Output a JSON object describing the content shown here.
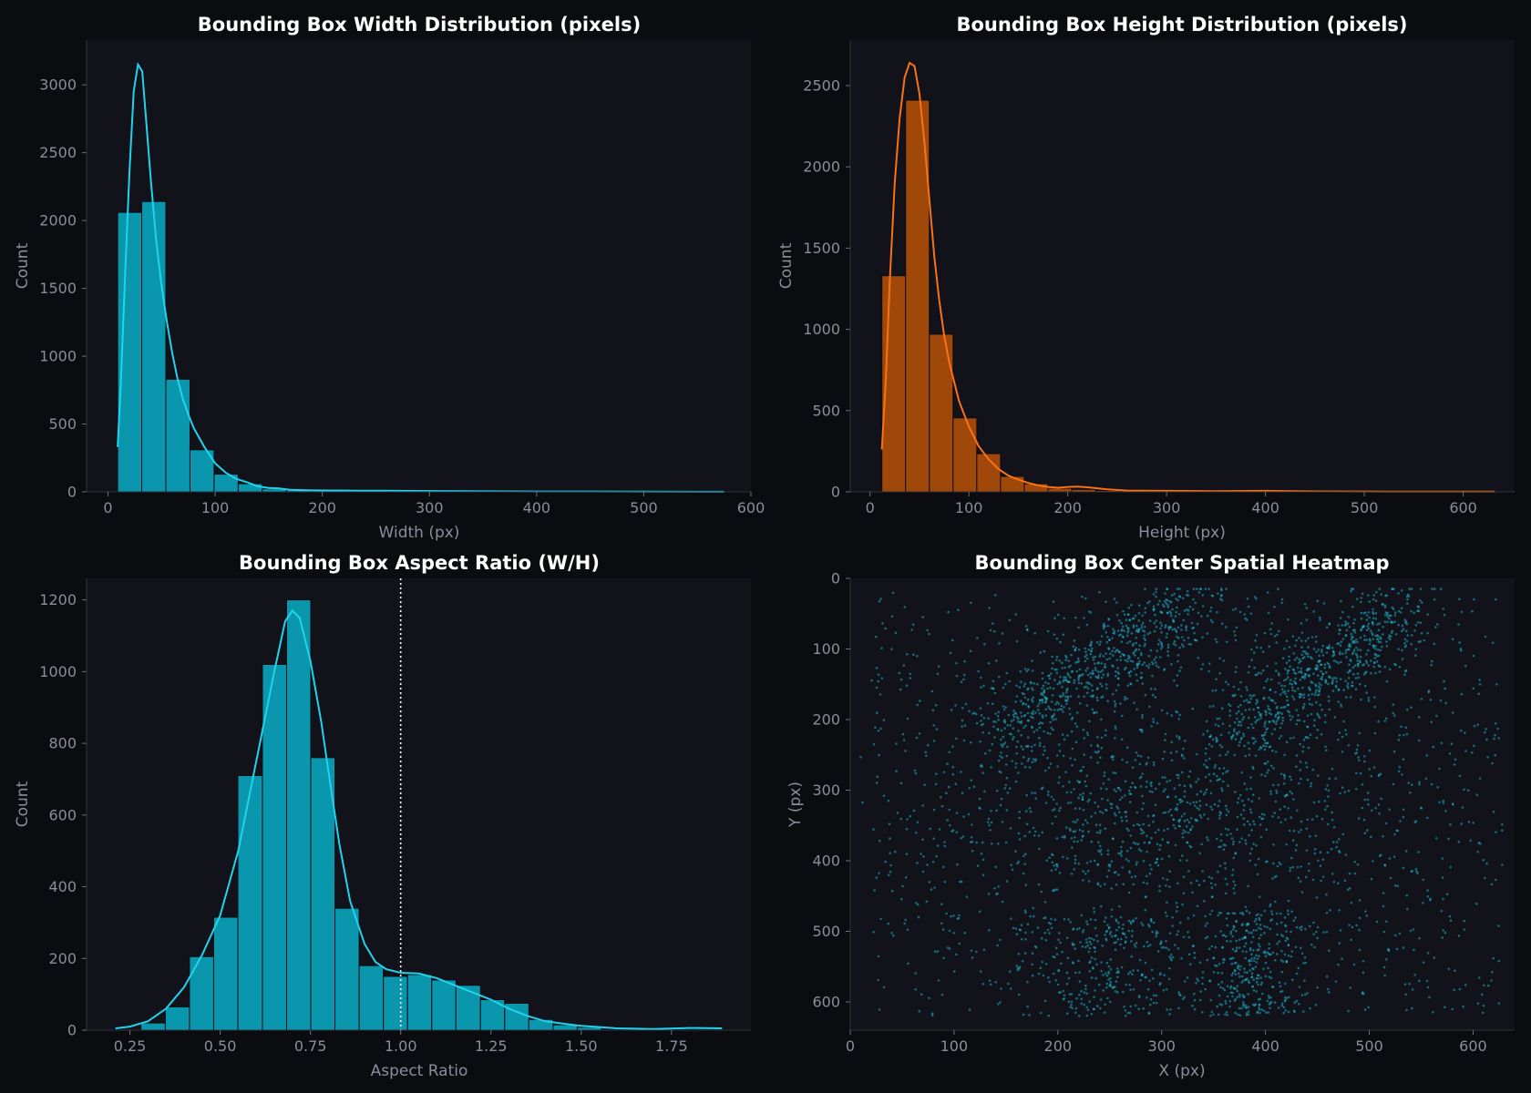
{
  "chart_data": [
    {
      "id": "width",
      "type": "bar",
      "title": "Bounding Box Width Distribution (pixels)",
      "xlabel": "Width (px)",
      "ylabel": "Count",
      "xlim": [
        -20,
        600
      ],
      "ylim": [
        0,
        3330
      ],
      "xticks": [
        0,
        100,
        200,
        300,
        400,
        500,
        600
      ],
      "yticks": [
        0,
        500,
        1000,
        1500,
        2000,
        2500,
        3000
      ],
      "color": "#0a97ad",
      "line_color": "#22d3ee",
      "bins": [
        {
          "x0": 9,
          "x1": 31.5,
          "count": 2060
        },
        {
          "x0": 31.5,
          "x1": 54,
          "count": 2140
        },
        {
          "x0": 54,
          "x1": 76.5,
          "count": 830
        },
        {
          "x0": 76.5,
          "x1": 99,
          "count": 310
        },
        {
          "x0": 99,
          "x1": 121.5,
          "count": 130
        },
        {
          "x0": 121.5,
          "x1": 144,
          "count": 60
        },
        {
          "x0": 144,
          "x1": 166.5,
          "count": 22
        },
        {
          "x0": 166.5,
          "x1": 189,
          "count": 12
        },
        {
          "x0": 189,
          "x1": 211.5,
          "count": 8
        },
        {
          "x0": 211.5,
          "x1": 234,
          "count": 6
        },
        {
          "x0": 234,
          "x1": 256.5,
          "count": 4
        },
        {
          "x0": 256.5,
          "x1": 279,
          "count": 3
        },
        {
          "x0": 279,
          "x1": 301.5,
          "count": 2
        },
        {
          "x0": 301.5,
          "x1": 324,
          "count": 2
        },
        {
          "x0": 324,
          "x1": 346.5,
          "count": 1
        }
      ],
      "kde": [
        [
          9,
          330
        ],
        [
          12,
          800
        ],
        [
          16,
          1600
        ],
        [
          20,
          2350
        ],
        [
          24,
          2950
        ],
        [
          28,
          3150
        ],
        [
          32,
          3100
        ],
        [
          36,
          2700
        ],
        [
          40,
          2300
        ],
        [
          45,
          1850
        ],
        [
          50,
          1520
        ],
        [
          55,
          1250
        ],
        [
          60,
          1020
        ],
        [
          65,
          830
        ],
        [
          70,
          680
        ],
        [
          75,
          570
        ],
        [
          80,
          470
        ],
        [
          90,
          330
        ],
        [
          100,
          210
        ],
        [
          110,
          140
        ],
        [
          120,
          95
        ],
        [
          130,
          70
        ],
        [
          140,
          40
        ],
        [
          150,
          28
        ],
        [
          160,
          25
        ],
        [
          170,
          15
        ],
        [
          185,
          12
        ],
        [
          200,
          10
        ],
        [
          230,
          9
        ],
        [
          260,
          8
        ],
        [
          300,
          6
        ],
        [
          350,
          4
        ],
        [
          400,
          3
        ],
        [
          450,
          3
        ],
        [
          500,
          2
        ],
        [
          575,
          1
        ]
      ],
      "vline": null
    },
    {
      "id": "height",
      "type": "bar",
      "title": "Bounding Box Height Distribution (pixels)",
      "xlabel": "Height (px)",
      "ylabel": "Count",
      "xlim": [
        -20,
        652
      ],
      "ylim": [
        0,
        2780
      ],
      "xticks": [
        0,
        100,
        200,
        300,
        400,
        500,
        600
      ],
      "yticks": [
        0,
        500,
        1000,
        1500,
        2000,
        2500
      ],
      "color": "#a0480a",
      "line_color": "#f97316",
      "bins": [
        {
          "x0": 12,
          "x1": 36,
          "count": 1330
        },
        {
          "x0": 36,
          "x1": 60,
          "count": 2410
        },
        {
          "x0": 60,
          "x1": 84,
          "count": 970
        },
        {
          "x0": 84,
          "x1": 108,
          "count": 455
        },
        {
          "x0": 108,
          "x1": 132,
          "count": 235
        },
        {
          "x0": 132,
          "x1": 156,
          "count": 95
        },
        {
          "x0": 156,
          "x1": 180,
          "count": 50
        },
        {
          "x0": 180,
          "x1": 204,
          "count": 22
        },
        {
          "x0": 204,
          "x1": 228,
          "count": 15
        },
        {
          "x0": 228,
          "x1": 252,
          "count": 8
        },
        {
          "x0": 252,
          "x1": 276,
          "count": 4
        },
        {
          "x0": 276,
          "x1": 300,
          "count": 3
        }
      ],
      "kde": [
        [
          12,
          260
        ],
        [
          16,
          700
        ],
        [
          20,
          1300
        ],
        [
          25,
          1900
        ],
        [
          30,
          2300
        ],
        [
          35,
          2550
        ],
        [
          40,
          2640
        ],
        [
          45,
          2620
        ],
        [
          50,
          2450
        ],
        [
          55,
          2150
        ],
        [
          60,
          1800
        ],
        [
          65,
          1450
        ],
        [
          70,
          1180
        ],
        [
          75,
          960
        ],
        [
          80,
          800
        ],
        [
          90,
          560
        ],
        [
          100,
          400
        ],
        [
          110,
          280
        ],
        [
          120,
          200
        ],
        [
          130,
          140
        ],
        [
          140,
          100
        ],
        [
          150,
          75
        ],
        [
          160,
          55
        ],
        [
          170,
          40
        ],
        [
          180,
          30
        ],
        [
          190,
          25
        ],
        [
          200,
          30
        ],
        [
          210,
          32
        ],
        [
          220,
          28
        ],
        [
          240,
          15
        ],
        [
          260,
          8
        ],
        [
          300,
          6
        ],
        [
          350,
          4
        ],
        [
          400,
          6
        ],
        [
          450,
          3
        ],
        [
          500,
          2
        ],
        [
          550,
          1
        ],
        [
          632,
          1
        ]
      ],
      "vline": null
    },
    {
      "id": "aspect",
      "type": "bar",
      "title": "Bounding Box Aspect Ratio (W/H)",
      "xlabel": "Aspect Ratio",
      "ylabel": "Count",
      "xlim": [
        0.13,
        1.97
      ],
      "ylim": [
        0,
        1260
      ],
      "xticks": [
        0.25,
        0.5,
        0.75,
        1.0,
        1.25,
        1.5,
        1.75
      ],
      "xtick_labels": [
        "0.25",
        "0.50",
        "0.75",
        "1.00",
        "1.25",
        "1.50",
        "1.75"
      ],
      "yticks": [
        0,
        200,
        400,
        600,
        800,
        1000,
        1200
      ],
      "color": "#0a97ad",
      "line_color": "#22d3ee",
      "bins": [
        {
          "x0": 0.2806,
          "x1": 0.348,
          "count": 20
        },
        {
          "x0": 0.348,
          "x1": 0.415,
          "count": 65
        },
        {
          "x0": 0.415,
          "x1": 0.482,
          "count": 205
        },
        {
          "x0": 0.482,
          "x1": 0.549,
          "count": 315
        },
        {
          "x0": 0.549,
          "x1": 0.617,
          "count": 710
        },
        {
          "x0": 0.617,
          "x1": 0.684,
          "count": 1020
        },
        {
          "x0": 0.684,
          "x1": 0.751,
          "count": 1200
        },
        {
          "x0": 0.751,
          "x1": 0.818,
          "count": 760
        },
        {
          "x0": 0.818,
          "x1": 0.885,
          "count": 340
        },
        {
          "x0": 0.885,
          "x1": 0.952,
          "count": 180
        },
        {
          "x0": 0.952,
          "x1": 1.019,
          "count": 150
        },
        {
          "x0": 1.019,
          "x1": 1.086,
          "count": 155
        },
        {
          "x0": 1.086,
          "x1": 1.153,
          "count": 140
        },
        {
          "x0": 1.153,
          "x1": 1.221,
          "count": 125
        },
        {
          "x0": 1.221,
          "x1": 1.288,
          "count": 85
        },
        {
          "x0": 1.288,
          "x1": 1.355,
          "count": 75
        },
        {
          "x0": 1.355,
          "x1": 1.422,
          "count": 30
        },
        {
          "x0": 1.422,
          "x1": 1.489,
          "count": 15
        },
        {
          "x0": 1.489,
          "x1": 1.556,
          "count": 8
        }
      ],
      "kde": [
        [
          0.21,
          5
        ],
        [
          0.25,
          10
        ],
        [
          0.3,
          25
        ],
        [
          0.35,
          60
        ],
        [
          0.4,
          120
        ],
        [
          0.45,
          210
        ],
        [
          0.5,
          320
        ],
        [
          0.55,
          500
        ],
        [
          0.6,
          750
        ],
        [
          0.65,
          1000
        ],
        [
          0.68,
          1140
        ],
        [
          0.7,
          1170
        ],
        [
          0.72,
          1150
        ],
        [
          0.75,
          1030
        ],
        [
          0.78,
          860
        ],
        [
          0.8,
          720
        ],
        [
          0.83,
          520
        ],
        [
          0.86,
          360
        ],
        [
          0.9,
          240
        ],
        [
          0.93,
          190
        ],
        [
          0.96,
          170
        ],
        [
          1.0,
          160
        ],
        [
          1.05,
          158
        ],
        [
          1.1,
          145
        ],
        [
          1.15,
          125
        ],
        [
          1.2,
          105
        ],
        [
          1.25,
          85
        ],
        [
          1.3,
          60
        ],
        [
          1.35,
          40
        ],
        [
          1.4,
          25
        ],
        [
          1.45,
          18
        ],
        [
          1.5,
          12
        ],
        [
          1.6,
          5
        ],
        [
          1.7,
          3
        ],
        [
          1.8,
          6
        ],
        [
          1.89,
          5
        ]
      ],
      "vline": 1.0
    },
    {
      "id": "heatmap",
      "type": "scatter",
      "title": "Bounding Box Center Spatial Heatmap",
      "xlabel": "X (px)",
      "ylabel": "Y (px)",
      "xlim": [
        0,
        640
      ],
      "ylim": [
        640,
        0
      ],
      "xticks": [
        0,
        100,
        200,
        300,
        400,
        500,
        600
      ],
      "yticks": [
        0,
        100,
        200,
        300,
        400,
        500,
        600
      ],
      "color": "#22d3ee",
      "point_opacity": 0.45,
      "point_count": 3800
    }
  ]
}
